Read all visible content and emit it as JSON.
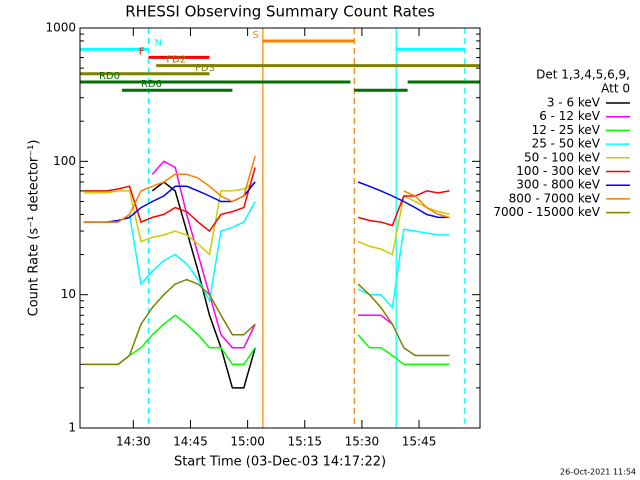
{
  "chart_data": {
    "type": "line",
    "title": "RHESSI Observing Summary Count Rates",
    "xlabel": "Start Time (03-Dec-03 14:17:22)",
    "ylabel": "Count Rate (s⁻¹ detector⁻¹)",
    "footer": "26-Oct-2021 11:54",
    "legend_title": [
      "Det 1,3,4,5,6,9,",
      "Att 0"
    ],
    "log_y": true,
    "xlim": [
      "14:16",
      "16:01"
    ],
    "xticks": [
      "14:30",
      "14:45",
      "15:00",
      "15:15",
      "15:30",
      "15:45"
    ],
    "ylim": [
      1,
      1000
    ],
    "yticks": [
      1,
      10,
      100,
      1000
    ],
    "x": [
      "14:17",
      "14:20",
      "14:23",
      "14:26",
      "14:29",
      "14:32",
      "14:35",
      "14:38",
      "14:41",
      "14:44",
      "14:47",
      "14:50",
      "14:53",
      "14:56",
      "14:59",
      "15:02",
      "15:15",
      "15:29",
      "15:32",
      "15:35",
      "15:38",
      "15:41",
      "15:44",
      "15:47",
      "15:50",
      "15:53"
    ],
    "series": [
      {
        "name": "3 - 6 keV",
        "color": "#000000",
        "values": [
          null,
          null,
          null,
          null,
          null,
          null,
          60,
          70,
          60,
          30,
          15,
          7,
          4,
          2,
          2,
          4,
          null,
          null,
          null,
          null,
          null,
          null,
          null,
          null,
          null,
          null
        ]
      },
      {
        "name": "6 - 12 keV",
        "color": "#ff00ff",
        "values": [
          null,
          null,
          null,
          null,
          null,
          null,
          80,
          100,
          90,
          40,
          20,
          10,
          5,
          4,
          4,
          6,
          null,
          7,
          7,
          7,
          6,
          null,
          null,
          null,
          null,
          null
        ]
      },
      {
        "name": "12 - 25 keV",
        "color": "#00ff00",
        "values": [
          3,
          3,
          3,
          3,
          3.5,
          4,
          5,
          6,
          7,
          6,
          5,
          4,
          4,
          3,
          3,
          4,
          null,
          5,
          4,
          4,
          3.5,
          3,
          3,
          3,
          3,
          3
        ]
      },
      {
        "name": "25 - 50 keV",
        "color": "#00ffff",
        "values": [
          35,
          35,
          35,
          35,
          40,
          12,
          15,
          18,
          20,
          17,
          13,
          9,
          30,
          32,
          35,
          50,
          null,
          11,
          10,
          10,
          8,
          31,
          30,
          29,
          28,
          28
        ]
      },
      {
        "name": "50 - 100 keV",
        "color": "#cccc00",
        "values": [
          58,
          58,
          58,
          60,
          60,
          25,
          27,
          28,
          30,
          28,
          24,
          20,
          60,
          60,
          62,
          70,
          null,
          25,
          23,
          22,
          20,
          55,
          50,
          45,
          42,
          40
        ]
      },
      {
        "name": "100 - 300 keV",
        "color": "#ff0000",
        "values": [
          60,
          60,
          60,
          62,
          65,
          35,
          38,
          40,
          45,
          42,
          35,
          30,
          40,
          42,
          45,
          90,
          null,
          38,
          36,
          35,
          33,
          55,
          55,
          60,
          58,
          60
        ]
      },
      {
        "name": "300 - 800 keV",
        "color": "#0000ff",
        "values": [
          35,
          35,
          35,
          36,
          38,
          45,
          50,
          55,
          65,
          65,
          60,
          55,
          50,
          50,
          55,
          70,
          null,
          70,
          65,
          60,
          55,
          50,
          45,
          40,
          38,
          38
        ]
      },
      {
        "name": "800 - 7000 keV",
        "color": "#ff8000",
        "values": [
          35,
          35,
          35,
          35,
          40,
          60,
          65,
          70,
          80,
          80,
          75,
          65,
          55,
          50,
          55,
          110,
          null,
          null,
          null,
          null,
          null,
          60,
          55,
          45,
          40,
          38
        ]
      },
      {
        "name": "7000 - 15000 keV",
        "color": "#808000",
        "values": [
          3,
          3,
          3,
          3,
          3.5,
          6,
          8,
          10,
          12,
          13,
          12,
          10,
          7,
          5,
          5,
          6,
          null,
          12,
          10,
          8,
          6,
          4,
          3.5,
          3.5,
          3.5,
          3.5
        ]
      }
    ],
    "flags": [
      {
        "label": "S",
        "color": "#ff8000",
        "intervals": [
          [
            "15:04",
            "15:28"
          ]
        ]
      },
      {
        "label": "N",
        "color": "#00ffff",
        "intervals": [
          [
            "14:16",
            "14:34"
          ],
          [
            "15:39",
            "15:57"
          ]
        ]
      },
      {
        "label": "F",
        "color": "#ff0000",
        "intervals": [
          [
            "14:34",
            "14:50"
          ]
        ]
      },
      {
        "label": "FD2",
        "color": "#808000",
        "intervals": [
          [
            "14:36",
            "16:01"
          ]
        ]
      },
      {
        "label": "FD3",
        "color": "#808000",
        "intervals": [
          [
            "14:16",
            "14:50"
          ]
        ]
      },
      {
        "label": "RD0",
        "color": "#007000",
        "intervals": [
          [
            "14:16",
            "15:27"
          ],
          [
            "15:42",
            "16:01"
          ]
        ]
      },
      {
        "label": "RD6",
        "color": "#007000",
        "intervals": [
          [
            "14:27",
            "14:56"
          ],
          [
            "15:28",
            "15:42"
          ]
        ]
      }
    ],
    "vlines": [
      {
        "x": "14:34",
        "color": "#00ffff",
        "dashed": true
      },
      {
        "x": "15:39",
        "color": "#00ffff",
        "dashed": false
      },
      {
        "x": "15:57",
        "color": "#00ffff",
        "dashed": true
      },
      {
        "x": "15:04",
        "color": "#ff8000",
        "dashed": false
      },
      {
        "x": "15:28",
        "color": "#ff8000",
        "dashed": true
      }
    ]
  }
}
